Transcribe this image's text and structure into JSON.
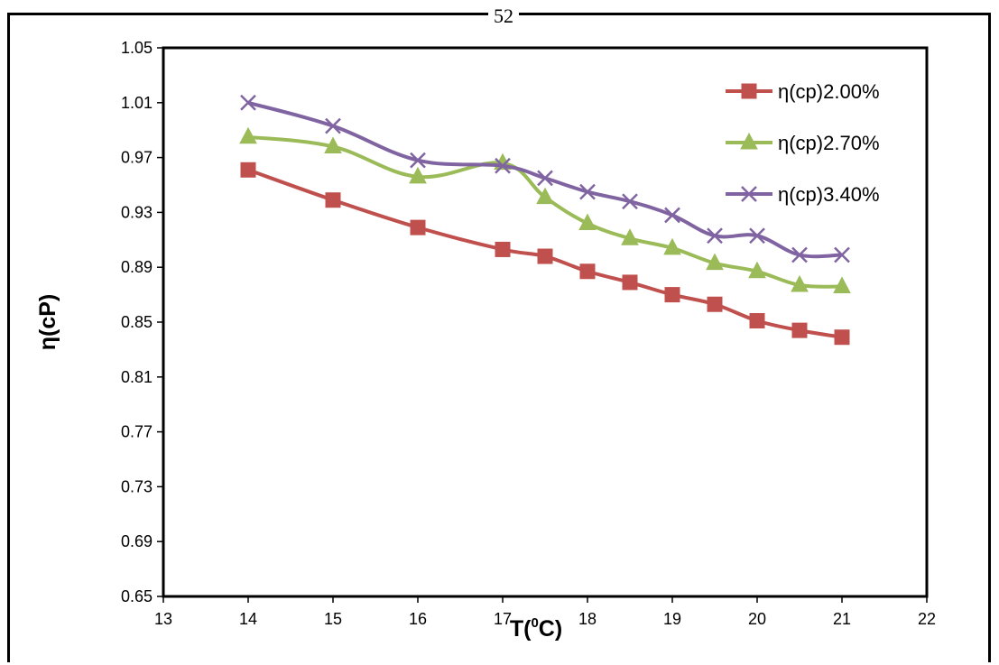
{
  "page_number": "52",
  "chart_data": {
    "type": "line",
    "title": "",
    "xlabel": "T(⁰C)",
    "xlabel_main": "T(",
    "xlabel_sup": "0",
    "xlabel_end": "C)",
    "ylabel": "η(cP)",
    "xlim": [
      13,
      22
    ],
    "ylim": [
      0.65,
      1.05
    ],
    "xticks": [
      13,
      14,
      15,
      16,
      17,
      18,
      19,
      20,
      21,
      22
    ],
    "xtick_labels": [
      "13",
      "14",
      "15",
      "16",
      "17",
      "18",
      "19",
      "20",
      "21",
      "22"
    ],
    "yticks": [
      0.65,
      0.69,
      0.73,
      0.77,
      0.81,
      0.85,
      0.89,
      0.93,
      0.97,
      1.01,
      1.05
    ],
    "ytick_labels": [
      "0.65",
      "0.69",
      "0.73",
      "0.77",
      "0.81",
      "0.85",
      "0.89",
      "0.93",
      "0.97",
      "1.01",
      "1.05"
    ],
    "grid": false,
    "legend_position": "top-right",
    "x": [
      14,
      15,
      16,
      17,
      17.5,
      18,
      18.5,
      19,
      19.5,
      20,
      20.5,
      21
    ],
    "series": [
      {
        "name": "η(cp)2.00%",
        "color": "#C0504D",
        "marker": "square",
        "values": [
          0.961,
          0.939,
          0.919,
          0.903,
          0.898,
          0.887,
          0.879,
          0.87,
          0.863,
          0.851,
          0.844,
          0.839
        ]
      },
      {
        "name": "η(cp)2.70%",
        "color": "#9BBB59",
        "marker": "triangle",
        "values": [
          0.985,
          0.978,
          0.956,
          0.966,
          0.941,
          0.922,
          0.911,
          0.904,
          0.893,
          0.887,
          0.877,
          0.876
        ]
      },
      {
        "name": "η(cp)3.40%",
        "color": "#8064A2",
        "marker": "x",
        "values": [
          1.01,
          0.993,
          0.968,
          0.964,
          0.955,
          0.945,
          0.938,
          0.928,
          0.913,
          0.913,
          0.899,
          0.899
        ]
      }
    ]
  }
}
